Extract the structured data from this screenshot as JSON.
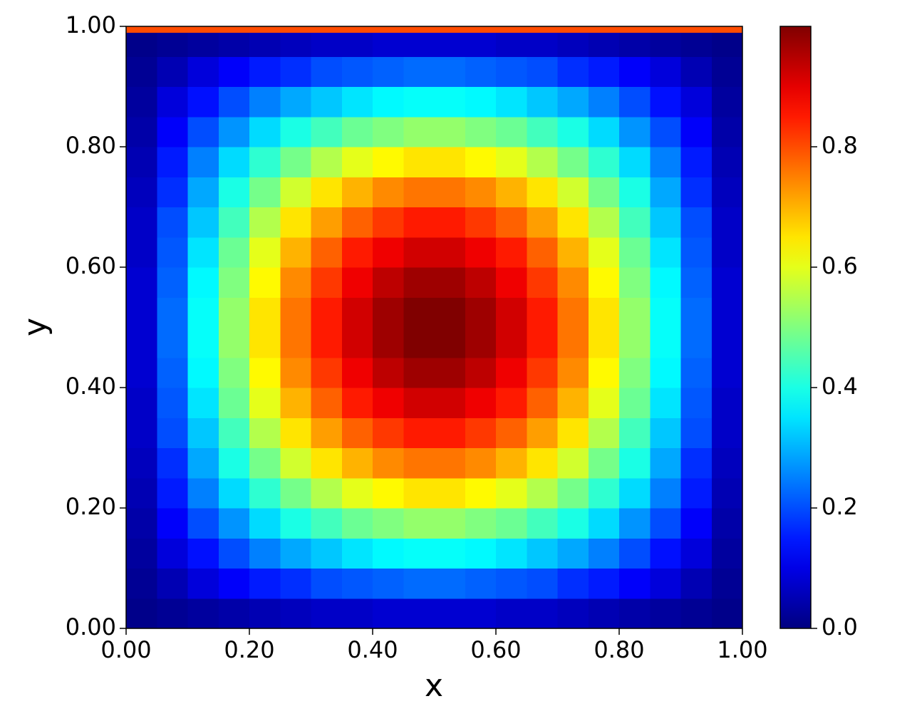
{
  "chart_data": {
    "type": "heatmap",
    "xlabel": "x",
    "ylabel": "y",
    "colormap": "jet",
    "xlim": [
      0,
      1
    ],
    "ylim": [
      0,
      1
    ],
    "xticks": [
      {
        "value": 0,
        "label": "0.00"
      },
      {
        "value": 0.2,
        "label": "0.20"
      },
      {
        "value": 0.4,
        "label": "0.40"
      },
      {
        "value": 0.6,
        "label": "0.60"
      },
      {
        "value": 0.8,
        "label": "0.80"
      },
      {
        "value": 1,
        "label": "1.00"
      }
    ],
    "yticks": [
      {
        "value": 0,
        "label": "0.00"
      },
      {
        "value": 0.2,
        "label": "0.20"
      },
      {
        "value": 0.4,
        "label": "0.40"
      },
      {
        "value": 0.6,
        "label": "0.60"
      },
      {
        "value": 0.8,
        "label": "0.80"
      },
      {
        "value": 1,
        "label": "1.00"
      }
    ],
    "colorbar": {
      "lim": [
        0,
        1
      ],
      "ticks": [
        {
          "value": 0,
          "label": "0.0"
        },
        0.2,
        0.4,
        0.6,
        0.8
      ]
    },
    "x_edges": [
      0,
      0.05,
      0.1,
      0.15,
      0.2,
      0.25,
      0.3,
      0.35,
      0.4,
      0.45,
      0.5,
      0.55,
      0.6,
      0.65,
      0.7,
      0.75,
      0.8,
      0.85,
      0.9,
      0.95,
      1
    ],
    "y_edges": [
      0,
      0.05,
      0.1,
      0.15,
      0.2,
      0.25,
      0.3,
      0.35,
      0.4,
      0.45,
      0.5,
      0.55,
      0.6,
      0.65,
      0.7,
      0.75,
      0.8,
      0.85,
      0.9,
      0.95,
      0.99,
      1
    ],
    "z": [
      [
        0.01,
        0.02,
        0.03,
        0.04,
        0.05,
        0.06,
        0.07,
        0.07,
        0.08,
        0.08,
        0.08,
        0.08,
        0.07,
        0.07,
        0.06,
        0.05,
        0.04,
        0.03,
        0.02,
        0.01
      ],
      [
        0.02,
        0.05,
        0.09,
        0.12,
        0.15,
        0.17,
        0.2,
        0.21,
        0.22,
        0.23,
        0.23,
        0.22,
        0.21,
        0.2,
        0.17,
        0.15,
        0.12,
        0.09,
        0.05,
        0.02
      ],
      [
        0.03,
        0.09,
        0.14,
        0.2,
        0.25,
        0.29,
        0.32,
        0.35,
        0.37,
        0.38,
        0.38,
        0.37,
        0.35,
        0.32,
        0.29,
        0.25,
        0.2,
        0.14,
        0.09,
        0.03
      ],
      [
        0.04,
        0.12,
        0.2,
        0.27,
        0.34,
        0.4,
        0.44,
        0.48,
        0.5,
        0.52,
        0.52,
        0.5,
        0.48,
        0.44,
        0.4,
        0.34,
        0.27,
        0.2,
        0.12,
        0.04
      ],
      [
        0.05,
        0.15,
        0.25,
        0.34,
        0.42,
        0.49,
        0.55,
        0.6,
        0.63,
        0.65,
        0.65,
        0.63,
        0.6,
        0.55,
        0.49,
        0.42,
        0.34,
        0.25,
        0.15,
        0.05
      ],
      [
        0.06,
        0.17,
        0.29,
        0.4,
        0.49,
        0.58,
        0.65,
        0.7,
        0.74,
        0.76,
        0.76,
        0.74,
        0.7,
        0.65,
        0.58,
        0.49,
        0.4,
        0.29,
        0.17,
        0.06
      ],
      [
        0.07,
        0.2,
        0.32,
        0.44,
        0.55,
        0.65,
        0.72,
        0.78,
        0.82,
        0.85,
        0.85,
        0.82,
        0.78,
        0.72,
        0.65,
        0.55,
        0.44,
        0.32,
        0.2,
        0.07
      ],
      [
        0.07,
        0.21,
        0.35,
        0.48,
        0.6,
        0.7,
        0.78,
        0.85,
        0.89,
        0.92,
        0.92,
        0.89,
        0.85,
        0.78,
        0.7,
        0.6,
        0.48,
        0.35,
        0.21,
        0.07
      ],
      [
        0.08,
        0.22,
        0.37,
        0.5,
        0.63,
        0.74,
        0.82,
        0.89,
        0.94,
        0.97,
        0.97,
        0.94,
        0.89,
        0.82,
        0.74,
        0.63,
        0.5,
        0.37,
        0.22,
        0.08
      ],
      [
        0.08,
        0.23,
        0.38,
        0.52,
        0.65,
        0.76,
        0.85,
        0.92,
        0.97,
        1.0,
        1.0,
        0.97,
        0.92,
        0.85,
        0.76,
        0.65,
        0.52,
        0.38,
        0.23,
        0.08
      ],
      [
        0.08,
        0.23,
        0.38,
        0.52,
        0.65,
        0.76,
        0.85,
        0.92,
        0.97,
        1.0,
        1.0,
        0.97,
        0.92,
        0.85,
        0.76,
        0.65,
        0.52,
        0.38,
        0.23,
        0.08
      ],
      [
        0.08,
        0.22,
        0.37,
        0.5,
        0.63,
        0.74,
        0.82,
        0.89,
        0.94,
        0.97,
        0.97,
        0.94,
        0.89,
        0.82,
        0.74,
        0.63,
        0.5,
        0.37,
        0.22,
        0.08
      ],
      [
        0.07,
        0.21,
        0.35,
        0.48,
        0.6,
        0.7,
        0.78,
        0.85,
        0.89,
        0.92,
        0.92,
        0.89,
        0.85,
        0.78,
        0.7,
        0.6,
        0.48,
        0.35,
        0.21,
        0.07
      ],
      [
        0.07,
        0.2,
        0.32,
        0.44,
        0.55,
        0.65,
        0.72,
        0.78,
        0.82,
        0.85,
        0.85,
        0.82,
        0.78,
        0.72,
        0.65,
        0.55,
        0.44,
        0.32,
        0.2,
        0.07
      ],
      [
        0.06,
        0.17,
        0.29,
        0.4,
        0.49,
        0.58,
        0.65,
        0.7,
        0.74,
        0.76,
        0.76,
        0.74,
        0.7,
        0.65,
        0.58,
        0.49,
        0.4,
        0.29,
        0.17,
        0.06
      ],
      [
        0.05,
        0.15,
        0.25,
        0.34,
        0.42,
        0.49,
        0.55,
        0.6,
        0.63,
        0.65,
        0.65,
        0.63,
        0.6,
        0.55,
        0.49,
        0.42,
        0.34,
        0.25,
        0.15,
        0.05
      ],
      [
        0.04,
        0.12,
        0.2,
        0.27,
        0.34,
        0.4,
        0.44,
        0.48,
        0.5,
        0.52,
        0.52,
        0.5,
        0.48,
        0.44,
        0.4,
        0.34,
        0.27,
        0.2,
        0.12,
        0.04
      ],
      [
        0.03,
        0.09,
        0.14,
        0.2,
        0.25,
        0.29,
        0.32,
        0.35,
        0.37,
        0.38,
        0.38,
        0.37,
        0.35,
        0.32,
        0.29,
        0.25,
        0.2,
        0.14,
        0.09,
        0.03
      ],
      [
        0.02,
        0.05,
        0.09,
        0.12,
        0.15,
        0.17,
        0.2,
        0.21,
        0.22,
        0.23,
        0.23,
        0.22,
        0.21,
        0.2,
        0.17,
        0.15,
        0.12,
        0.09,
        0.05,
        0.02
      ],
      [
        0.01,
        0.02,
        0.03,
        0.04,
        0.05,
        0.06,
        0.07,
        0.07,
        0.08,
        0.08,
        0.08,
        0.08,
        0.07,
        0.07,
        0.06,
        0.05,
        0.04,
        0.03,
        0.02,
        0.01
      ],
      [
        0.8,
        0.8,
        0.8,
        0.8,
        0.8,
        0.8,
        0.8,
        0.8,
        0.8,
        0.8,
        0.8,
        0.8,
        0.8,
        0.8,
        0.8,
        0.8,
        0.8,
        0.8,
        0.8,
        0.8
      ]
    ]
  }
}
